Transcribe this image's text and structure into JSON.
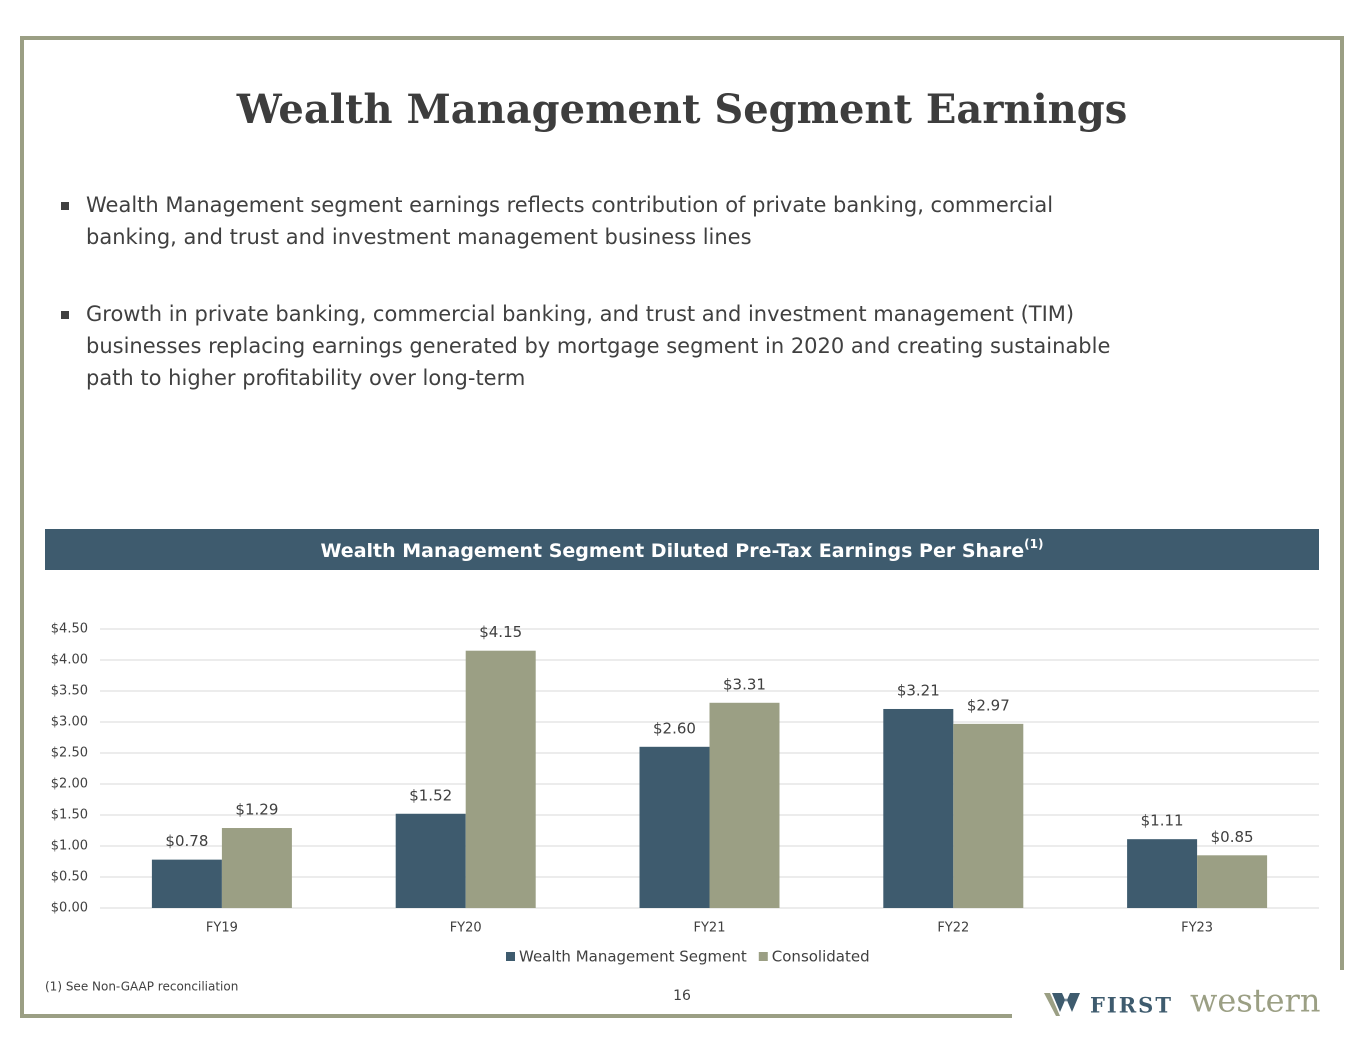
{
  "slide": {
    "title": "Wealth Management Segment Earnings",
    "bullets": [
      [
        "Wealth Management segment earnings reflects contribution of private banking, commercial",
        "banking, and trust and investment management business lines"
      ],
      [
        "Growth in private banking, commercial banking, and trust and investment management (TIM)",
        "businesses replacing earnings generated by mortgage segment in 2020 and creating sustainable",
        "path to higher profitability over long-term"
      ]
    ],
    "footnote": "(1)  See Non-GAAP reconciliation",
    "page_number": "16",
    "logo": {
      "first": "FIRST",
      "second": "western"
    }
  },
  "chart_data": {
    "type": "bar",
    "title": "Wealth Management Segment Diluted Pre-Tax Earnings Per Share",
    "title_superscript": "(1)",
    "categories": [
      "FY19",
      "FY20",
      "FY21",
      "FY22",
      "FY23"
    ],
    "series": [
      {
        "name": "Wealth Management Segment",
        "color": "#3e5b6e",
        "values": [
          0.78,
          1.52,
          2.6,
          3.21,
          1.11
        ],
        "value_labels": [
          "$0.78",
          "$1.52",
          "$2.60",
          "$3.21",
          "$1.11"
        ]
      },
      {
        "name": "Consolidated",
        "color": "#9b9f84",
        "values": [
          1.29,
          4.15,
          3.31,
          2.97,
          0.85
        ],
        "value_labels": [
          "$1.29",
          "$4.15",
          "$3.31",
          "$2.97",
          "$0.85"
        ]
      }
    ],
    "ylim": [
      0,
      4.5
    ],
    "yticks": [
      {
        "value": 0,
        "label": "$0.00"
      },
      {
        "value": 0.5,
        "label": "$0.50"
      },
      {
        "value": 1,
        "label": "$1.00"
      },
      {
        "value": 1.5,
        "label": "$1.50"
      },
      {
        "value": 2,
        "label": "$2.00"
      },
      {
        "value": 2.5,
        "label": "$2.50"
      },
      {
        "value": 3,
        "label": "$3.00"
      },
      {
        "value": 3.5,
        "label": "$3.50"
      },
      {
        "value": 4,
        "label": "$4.00"
      },
      {
        "value": 4.5,
        "label": "$4.50"
      }
    ],
    "grid": true,
    "legend": "bottom"
  }
}
